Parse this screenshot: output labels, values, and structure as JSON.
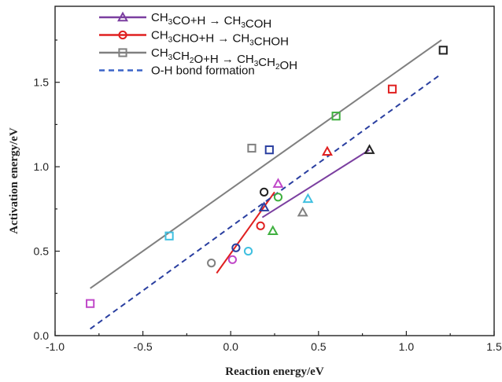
{
  "chart_data": {
    "type": "scatter",
    "xlabel": "Reaction energy/eV",
    "ylabel": "Activation energy/eV",
    "xlim": [
      -1.0,
      1.5
    ],
    "ylim": [
      0.0,
      1.95
    ],
    "x_ticks": [
      "-1.0",
      "-0.5",
      "0.0",
      "0.5",
      "1.0",
      "1.5"
    ],
    "y_ticks": [
      "0.0",
      "0.5",
      "1.0",
      "1.5"
    ],
    "legend_position": "top-left",
    "legend": [
      {
        "pre": "CH",
        "sub1": "3",
        "mid": "CO+H  →  CH",
        "sub2": "3",
        "post": "COH",
        "marker": "triangle",
        "color": "#7b3fa0",
        "line": "solid"
      },
      {
        "pre": "CH",
        "sub1": "3",
        "mid": "CHO+H  →  CH",
        "sub2": "3",
        "post": "CHOH",
        "marker": "circle",
        "color": "#e02020",
        "line": "solid"
      },
      {
        "pre": "CH",
        "sub1": "3",
        "mid": "CH",
        "sub2": "2",
        "mid2": "O+H  →  CH",
        "sub3": "3",
        "mid3": "CH",
        "sub4": "2",
        "post": "OH",
        "marker": "square",
        "color": "#808080",
        "line": "solid"
      },
      {
        "text": "O-H bond formation",
        "marker": "none",
        "color": "#3a63c8",
        "line": "dashed"
      }
    ],
    "fit_lines": [
      {
        "name": "CH3CO+H fit",
        "color": "#7b3fa0",
        "dash": false,
        "x": [
          0.18,
          0.79
        ],
        "y": [
          0.7,
          1.1
        ]
      },
      {
        "name": "CH3CHO+H fit",
        "color": "#e02020",
        "dash": false,
        "x": [
          -0.08,
          0.25
        ],
        "y": [
          0.37,
          0.85
        ]
      },
      {
        "name": "CH3CH2O+H fit",
        "color": "#808080",
        "dash": false,
        "x": [
          -0.8,
          1.2
        ],
        "y": [
          0.28,
          1.75
        ]
      },
      {
        "name": "O-H bond formation",
        "color": "#2a3fa0",
        "dash": true,
        "x": [
          -0.8,
          1.2
        ],
        "y": [
          0.04,
          1.55
        ]
      }
    ],
    "points": [
      {
        "shape": "square",
        "x": -0.8,
        "y": 0.19,
        "color": "#c048c8"
      },
      {
        "shape": "square",
        "x": -0.35,
        "y": 0.59,
        "color": "#40c0e0"
      },
      {
        "shape": "square",
        "x": 0.12,
        "y": 1.11,
        "color": "#808080"
      },
      {
        "shape": "square",
        "x": 0.22,
        "y": 1.1,
        "color": "#2a3fa0"
      },
      {
        "shape": "square",
        "x": 0.6,
        "y": 1.3,
        "color": "#40b040"
      },
      {
        "shape": "square",
        "x": 0.92,
        "y": 1.46,
        "color": "#e02020"
      },
      {
        "shape": "square",
        "x": 1.21,
        "y": 1.69,
        "color": "#222222"
      },
      {
        "shape": "circle",
        "x": -0.11,
        "y": 0.43,
        "color": "#808080"
      },
      {
        "shape": "circle",
        "x": 0.01,
        "y": 0.45,
        "color": "#c048c8"
      },
      {
        "shape": "circle",
        "x": 0.03,
        "y": 0.52,
        "color": "#2a3fa0"
      },
      {
        "shape": "circle",
        "x": 0.1,
        "y": 0.5,
        "color": "#40c0e0"
      },
      {
        "shape": "circle",
        "x": 0.17,
        "y": 0.65,
        "color": "#e02020"
      },
      {
        "shape": "circle",
        "x": 0.19,
        "y": 0.85,
        "color": "#222222"
      },
      {
        "shape": "circle",
        "x": 0.27,
        "y": 0.82,
        "color": "#40b040"
      },
      {
        "shape": "triangle",
        "x": 0.19,
        "y": 0.76,
        "color": "#2a3fa0"
      },
      {
        "shape": "triangle",
        "x": 0.24,
        "y": 0.62,
        "color": "#40b040"
      },
      {
        "shape": "triangle",
        "x": 0.27,
        "y": 0.9,
        "color": "#c048c8"
      },
      {
        "shape": "triangle",
        "x": 0.41,
        "y": 0.73,
        "color": "#808080"
      },
      {
        "shape": "triangle",
        "x": 0.44,
        "y": 0.81,
        "color": "#40c0e0"
      },
      {
        "shape": "triangle",
        "x": 0.55,
        "y": 1.09,
        "color": "#e02020"
      },
      {
        "shape": "triangle",
        "x": 0.79,
        "y": 1.1,
        "color": "#222222"
      }
    ]
  }
}
